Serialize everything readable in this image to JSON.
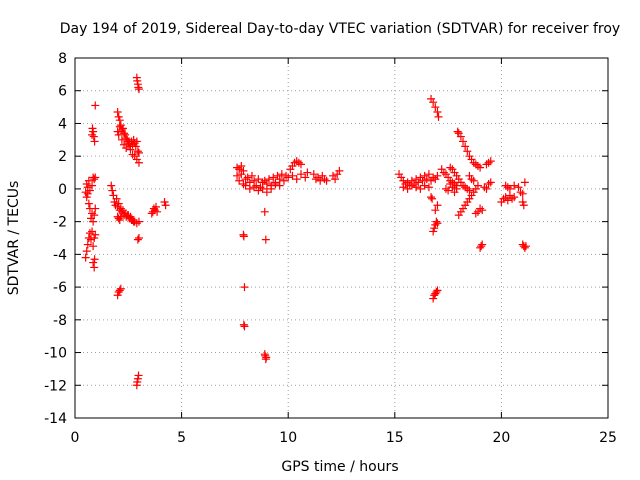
{
  "chart_data": {
    "type": "scatter",
    "title": "Day 194 of 2019, Sidereal Day-to-day VTEC variation (SDTVAR) for receiver froy",
    "xlabel": "GPS time / hours",
    "ylabel": "SDTVAR / TECUs",
    "xlim": [
      0,
      25
    ],
    "ylim": [
      -14,
      8
    ],
    "xticks": [
      "0",
      "5",
      "10",
      "15",
      "20",
      "25"
    ],
    "xtick_values": [
      0,
      5,
      10,
      15,
      20,
      25
    ],
    "yticks": [
      "-14",
      "-12",
      "-10",
      "-8",
      "-6",
      "-4",
      "-2",
      "0",
      "2",
      "4",
      "6",
      "8"
    ],
    "ytick_values": [
      -14,
      -12,
      -10,
      -8,
      -6,
      -4,
      -2,
      0,
      2,
      4,
      6,
      8
    ],
    "grid": true,
    "marker": "plus",
    "color": "#ff0000",
    "series": [
      {
        "name": "SDTVAR",
        "points": [
          [
            0.5,
            -4.2
          ],
          [
            0.55,
            -3.8
          ],
          [
            0.6,
            -3.4
          ],
          [
            0.65,
            -3.0
          ],
          [
            0.7,
            -2.7
          ],
          [
            0.75,
            -3.1
          ],
          [
            0.8,
            -2.6
          ],
          [
            0.85,
            -3.5
          ],
          [
            0.9,
            -3.0
          ],
          [
            0.95,
            -2.8
          ],
          [
            0.5,
            -0.2
          ],
          [
            0.55,
            -0.5
          ],
          [
            0.6,
            -0.3
          ],
          [
            0.65,
            -0.9
          ],
          [
            0.7,
            -1.2
          ],
          [
            0.75,
            -1.8
          ],
          [
            0.8,
            -1.5
          ],
          [
            0.85,
            -2.0
          ],
          [
            0.9,
            -1.6
          ],
          [
            0.95,
            -1.2
          ],
          [
            0.55,
            0.3
          ],
          [
            0.6,
            0.1
          ],
          [
            0.65,
            0.5
          ],
          [
            0.7,
            -0.1
          ],
          [
            0.8,
            0.2
          ],
          [
            0.85,
            0.7
          ],
          [
            0.9,
            0.6
          ],
          [
            0.95,
            0.7
          ],
          [
            0.8,
            3.3
          ],
          [
            0.82,
            3.7
          ],
          [
            0.85,
            3.5
          ],
          [
            0.88,
            3.2
          ],
          [
            0.92,
            2.9
          ],
          [
            0.95,
            5.1
          ],
          [
            0.85,
            -4.5
          ],
          [
            0.9,
            -4.8
          ],
          [
            0.92,
            -4.3
          ],
          [
            1.7,
            0.2
          ],
          [
            1.75,
            -0.1
          ],
          [
            1.8,
            -0.4
          ],
          [
            1.85,
            -0.8
          ],
          [
            1.9,
            -1.0
          ],
          [
            1.95,
            -0.6
          ],
          [
            2.0,
            -1.1
          ],
          [
            2.05,
            -0.9
          ],
          [
            2.1,
            -1.3
          ],
          [
            2.15,
            -1.2
          ],
          [
            2.2,
            -1.4
          ],
          [
            2.25,
            -1.3
          ],
          [
            2.3,
            -1.6
          ],
          [
            2.35,
            -1.5
          ],
          [
            2.4,
            -1.7
          ],
          [
            2.45,
            -1.6
          ],
          [
            2.5,
            -1.6
          ],
          [
            2.55,
            -1.8
          ],
          [
            2.6,
            -1.7
          ],
          [
            2.65,
            -1.9
          ],
          [
            2.7,
            -1.9
          ],
          [
            2.75,
            -2.0
          ],
          [
            2.8,
            -2.0
          ],
          [
            2.9,
            -2.1
          ],
          [
            3.0,
            -2.0
          ],
          [
            2.0,
            -1.7
          ],
          [
            2.05,
            -1.8
          ],
          [
            2.1,
            -1.9
          ],
          [
            2.15,
            -1.7
          ],
          [
            2.0,
            4.7
          ],
          [
            2.05,
            4.4
          ],
          [
            2.1,
            4.2
          ],
          [
            2.15,
            3.9
          ],
          [
            2.2,
            3.6
          ],
          [
            2.25,
            3.7
          ],
          [
            2.3,
            3.4
          ],
          [
            2.35,
            3.3
          ],
          [
            2.4,
            3.1
          ],
          [
            2.45,
            3.0
          ],
          [
            2.5,
            2.9
          ],
          [
            2.55,
            2.8
          ],
          [
            2.6,
            2.6
          ],
          [
            2.65,
            2.9
          ],
          [
            2.7,
            2.7
          ],
          [
            2.75,
            3.0
          ],
          [
            2.8,
            2.8
          ],
          [
            2.85,
            2.6
          ],
          [
            2.9,
            2.9
          ],
          [
            2.95,
            2.3
          ],
          [
            3.0,
            1.6
          ],
          [
            2.0,
            3.5
          ],
          [
            2.05,
            3.3
          ],
          [
            2.1,
            3.8
          ],
          [
            2.2,
            3.0
          ],
          [
            2.3,
            2.7
          ],
          [
            2.4,
            2.5
          ],
          [
            2.5,
            2.8
          ],
          [
            2.6,
            2.4
          ],
          [
            2.7,
            2.1
          ],
          [
            2.8,
            2.0
          ],
          [
            2.9,
            1.8
          ],
          [
            3.0,
            2.2
          ],
          [
            2.0,
            -6.5
          ],
          [
            2.05,
            -6.3
          ],
          [
            2.1,
            -6.2
          ],
          [
            2.15,
            -6.1
          ],
          [
            2.9,
            6.8
          ],
          [
            2.92,
            6.6
          ],
          [
            2.95,
            6.4
          ],
          [
            2.97,
            6.2
          ],
          [
            3.0,
            6.1
          ],
          [
            2.95,
            -3.1
          ],
          [
            3.0,
            -3.0
          ],
          [
            2.9,
            -12.0
          ],
          [
            2.92,
            -11.8
          ],
          [
            2.95,
            -11.6
          ],
          [
            2.98,
            -11.4
          ],
          [
            3.6,
            -1.5
          ],
          [
            3.65,
            -1.4
          ],
          [
            3.7,
            -1.2
          ],
          [
            3.75,
            -1.3
          ],
          [
            3.8,
            -1.1
          ],
          [
            3.85,
            -1.4
          ],
          [
            4.2,
            -0.8
          ],
          [
            4.25,
            -1.0
          ],
          [
            7.6,
            1.3
          ],
          [
            7.7,
            1.2
          ],
          [
            7.8,
            1.4
          ],
          [
            7.9,
            1.1
          ],
          [
            7.6,
            0.8
          ],
          [
            7.7,
            0.5
          ],
          [
            7.8,
            0.9
          ],
          [
            7.9,
            0.3
          ],
          [
            8.0,
            0.6
          ],
          [
            8.1,
            0.7
          ],
          [
            8.2,
            0.4
          ],
          [
            8.3,
            0.8
          ],
          [
            8.4,
            0.5
          ],
          [
            8.5,
            0.2
          ],
          [
            8.6,
            0.6
          ],
          [
            8.7,
            0.1
          ],
          [
            8.8,
            0.4
          ],
          [
            8.9,
            0.5
          ],
          [
            9.0,
            0.3
          ],
          [
            9.1,
            0.6
          ],
          [
            9.2,
            0.2
          ],
          [
            9.3,
            0.7
          ],
          [
            9.4,
            0.4
          ],
          [
            9.5,
            0.8
          ],
          [
            9.6,
            0.6
          ],
          [
            9.7,
            0.9
          ],
          [
            9.8,
            0.5
          ],
          [
            9.9,
            0.8
          ],
          [
            8.0,
            0.2
          ],
          [
            8.2,
            0.0
          ],
          [
            8.4,
            0.1
          ],
          [
            8.6,
            -0.1
          ],
          [
            8.8,
            0.0
          ],
          [
            9.0,
            -0.2
          ],
          [
            9.2,
            0.0
          ],
          [
            9.4,
            0.3
          ],
          [
            9.6,
            0.2
          ],
          [
            10.0,
            0.7
          ],
          [
            10.1,
            1.2
          ],
          [
            10.2,
            1.4
          ],
          [
            10.3,
            1.6
          ],
          [
            10.4,
            1.7
          ],
          [
            10.5,
            1.6
          ],
          [
            10.6,
            1.5
          ],
          [
            10.2,
            0.8
          ],
          [
            10.4,
            0.6
          ],
          [
            10.6,
            0.9
          ],
          [
            10.8,
            0.7
          ],
          [
            10.9,
            1.0
          ],
          [
            11.2,
            0.9
          ],
          [
            11.3,
            0.6
          ],
          [
            11.4,
            0.7
          ],
          [
            11.5,
            0.5
          ],
          [
            11.6,
            0.8
          ],
          [
            11.7,
            0.6
          ],
          [
            11.8,
            0.5
          ],
          [
            12.1,
            0.8
          ],
          [
            12.2,
            0.6
          ],
          [
            12.3,
            0.9
          ],
          [
            12.4,
            1.1
          ],
          [
            7.9,
            -2.8
          ],
          [
            7.92,
            -2.9
          ],
          [
            7.95,
            -6.0
          ],
          [
            7.92,
            -8.3
          ],
          [
            7.95,
            -8.4
          ],
          [
            8.9,
            -1.4
          ],
          [
            8.95,
            -3.1
          ],
          [
            8.9,
            -10.1
          ],
          [
            8.92,
            -10.2
          ],
          [
            8.95,
            -10.4
          ],
          [
            8.97,
            -10.3
          ],
          [
            15.2,
            0.9
          ],
          [
            15.3,
            0.7
          ],
          [
            15.4,
            0.5
          ],
          [
            15.5,
            0.3
          ],
          [
            15.6,
            0.4
          ],
          [
            15.7,
            0.2
          ],
          [
            15.8,
            0.5
          ],
          [
            15.9,
            0.3
          ],
          [
            16.0,
            0.6
          ],
          [
            16.1,
            0.4
          ],
          [
            16.2,
            0.7
          ],
          [
            16.3,
            0.5
          ],
          [
            16.4,
            0.8
          ],
          [
            16.5,
            0.6
          ],
          [
            16.6,
            0.9
          ],
          [
            16.7,
            0.5
          ],
          [
            16.8,
            0.7
          ],
          [
            16.9,
            0.6
          ],
          [
            17.0,
            0.8
          ],
          [
            15.4,
            0.1
          ],
          [
            15.6,
            0.0
          ],
          [
            15.8,
            0.2
          ],
          [
            16.0,
            0.1
          ],
          [
            16.2,
            0.0
          ],
          [
            16.4,
            0.2
          ],
          [
            16.6,
            0.1
          ],
          [
            16.7,
            5.5
          ],
          [
            16.8,
            5.3
          ],
          [
            16.9,
            5.0
          ],
          [
            17.0,
            4.7
          ],
          [
            17.05,
            4.4
          ],
          [
            16.8,
            -6.7
          ],
          [
            16.85,
            -6.5
          ],
          [
            16.9,
            -6.4
          ],
          [
            16.95,
            -6.3
          ],
          [
            17.0,
            -6.2
          ],
          [
            16.8,
            -2.6
          ],
          [
            16.85,
            -2.4
          ],
          [
            16.9,
            -2.2
          ],
          [
            16.95,
            -2.0
          ],
          [
            17.0,
            -2.1
          ],
          [
            16.7,
            -0.5
          ],
          [
            16.75,
            -0.6
          ],
          [
            16.9,
            -1.3
          ],
          [
            17.0,
            -1.0
          ],
          [
            17.2,
            1.2
          ],
          [
            17.3,
            1.0
          ],
          [
            17.4,
            0.9
          ],
          [
            17.5,
            0.7
          ],
          [
            17.6,
            0.5
          ],
          [
            17.7,
            0.4
          ],
          [
            17.8,
            0.3
          ],
          [
            17.9,
            0.2
          ],
          [
            17.4,
            0.0
          ],
          [
            17.5,
            -0.1
          ],
          [
            17.6,
            0.3
          ],
          [
            17.7,
            0.1
          ],
          [
            17.8,
            -0.2
          ],
          [
            17.9,
            0.0
          ],
          [
            17.6,
            1.3
          ],
          [
            17.7,
            1.2
          ],
          [
            17.8,
            1.0
          ],
          [
            17.9,
            0.8
          ],
          [
            18.0,
            0.6
          ],
          [
            18.1,
            0.4
          ],
          [
            18.2,
            0.2
          ],
          [
            18.3,
            0.1
          ],
          [
            18.4,
            0.0
          ],
          [
            18.5,
            -0.1
          ],
          [
            17.95,
            3.5
          ],
          [
            18.0,
            3.4
          ],
          [
            18.1,
            3.2
          ],
          [
            18.2,
            2.9
          ],
          [
            18.3,
            2.6
          ],
          [
            18.4,
            2.3
          ],
          [
            18.5,
            2.0
          ],
          [
            18.6,
            1.8
          ],
          [
            18.7,
            1.6
          ],
          [
            18.8,
            1.5
          ],
          [
            18.9,
            1.4
          ],
          [
            19.0,
            1.3
          ],
          [
            18.0,
            -1.6
          ],
          [
            18.1,
            -1.4
          ],
          [
            18.2,
            -1.2
          ],
          [
            18.3,
            -1.0
          ],
          [
            18.4,
            -0.8
          ],
          [
            18.5,
            -0.6
          ],
          [
            18.6,
            -0.4
          ],
          [
            18.7,
            -0.2
          ],
          [
            18.8,
            0.0
          ],
          [
            18.9,
            0.2
          ],
          [
            18.5,
            0.8
          ],
          [
            18.6,
            0.6
          ],
          [
            18.7,
            0.5
          ],
          [
            18.8,
            -1.5
          ],
          [
            18.9,
            -1.4
          ],
          [
            19.0,
            -1.2
          ],
          [
            19.1,
            -1.3
          ],
          [
            19.0,
            -3.6
          ],
          [
            19.05,
            -3.5
          ],
          [
            19.1,
            -3.4
          ],
          [
            19.3,
            1.5
          ],
          [
            19.4,
            1.6
          ],
          [
            19.5,
            1.7
          ],
          [
            19.2,
            0.1
          ],
          [
            19.3,
            0.0
          ],
          [
            19.4,
            0.3
          ],
          [
            19.5,
            0.4
          ],
          [
            20.0,
            -0.8
          ],
          [
            20.1,
            -0.6
          ],
          [
            20.2,
            -0.5
          ],
          [
            20.3,
            -0.7
          ],
          [
            20.4,
            -0.4
          ],
          [
            20.5,
            -0.6
          ],
          [
            20.6,
            -0.5
          ],
          [
            20.2,
            0.2
          ],
          [
            20.3,
            0.1
          ],
          [
            20.4,
            0.0
          ],
          [
            20.6,
            0.2
          ],
          [
            20.8,
            0.1
          ],
          [
            20.9,
            -0.2
          ],
          [
            21.0,
            -0.3
          ],
          [
            21.0,
            -0.8
          ],
          [
            21.05,
            -1.0
          ],
          [
            21.1,
            0.4
          ],
          [
            21.0,
            -3.4
          ],
          [
            21.05,
            -3.5
          ],
          [
            21.1,
            -3.6
          ],
          [
            21.15,
            -3.5
          ]
        ]
      }
    ]
  }
}
